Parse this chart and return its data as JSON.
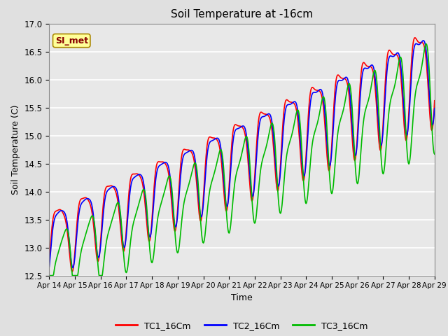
{
  "title": "Soil Temperature at -16cm",
  "xlabel": "Time",
  "ylabel": "Soil Temperature (C)",
  "ylim": [
    12.5,
    17.0
  ],
  "yticks": [
    12.5,
    13.0,
    13.5,
    14.0,
    14.5,
    15.0,
    15.5,
    16.0,
    16.5,
    17.0
  ],
  "xtick_labels": [
    "Apr 14",
    "Apr 15",
    "Apr 16",
    "Apr 17",
    "Apr 18",
    "Apr 19",
    "Apr 20",
    "Apr 21",
    "Apr 22",
    "Apr 23",
    "Apr 24",
    "Apr 25",
    "Apr 26",
    "Apr 27",
    "Apr 28",
    "Apr 29"
  ],
  "tc1_color": "#ff0000",
  "tc2_color": "#0000ff",
  "tc3_color": "#00bb00",
  "tc1_label": "TC1_16Cm",
  "tc2_label": "TC2_16Cm",
  "tc3_label": "TC3_16Cm",
  "watermark_text": "SI_met",
  "watermark_bg": "#ffff99",
  "watermark_border": "#aa8800",
  "watermark_text_color": "#880000",
  "background_color": "#e0e0e0",
  "plot_bg_color": "#e8e8e8",
  "line_width": 1.2,
  "n_points": 721,
  "total_days": 15
}
